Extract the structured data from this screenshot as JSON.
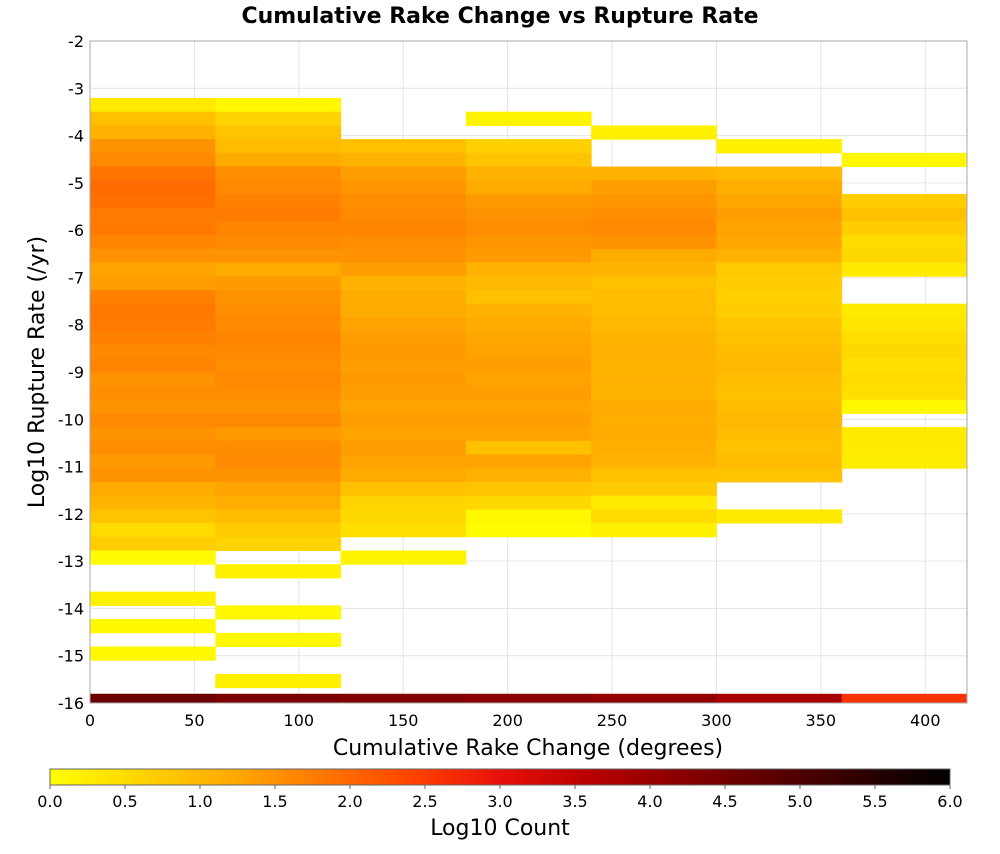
{
  "chart_data": {
    "type": "heatmap",
    "title": "Cumulative Rake Change vs Rupture Rate",
    "xlabel": "Cumulative Rake Change (degrees)",
    "ylabel": "Log10 Rupture Rate (/yr)",
    "xlim": [
      0,
      420
    ],
    "ylim": [
      -16,
      -2
    ],
    "grid": true,
    "x_ticks": [
      0,
      50,
      100,
      150,
      200,
      250,
      300,
      350,
      400
    ],
    "y_ticks": [
      -2,
      -3,
      -4,
      -5,
      -6,
      -7,
      -8,
      -9,
      -10,
      -11,
      -12,
      -13,
      -14,
      -15,
      -16
    ],
    "x_bin_edges": [
      0,
      60,
      120,
      180,
      240,
      300,
      360,
      420
    ],
    "y_bin_width": 0.29,
    "colorbar": {
      "label": "Log10 Count",
      "range": [
        0.0,
        6.0
      ],
      "ticks": [
        "0.0",
        "0.5",
        "1.0",
        "1.5",
        "2.0",
        "2.5",
        "3.0",
        "3.5",
        "4.0",
        "4.5",
        "5.0",
        "5.5",
        "6.0"
      ],
      "colors": [
        "#ffff00",
        "#ffd400",
        "#ffab00",
        "#ff7800",
        "#ff4400",
        "#e8100a",
        "#b80000",
        "#8a0000",
        "#5c0000",
        "#2e0000",
        "#000000"
      ]
    },
    "columns": [
      {
        "x_range": [
          0,
          60
        ],
        "cells": [
          {
            "y": -3.35,
            "v": 0.3
          },
          {
            "y": -3.64,
            "v": 0.9
          },
          {
            "y": -3.93,
            "v": 1.1
          },
          {
            "y": -4.22,
            "v": 1.5
          },
          {
            "y": -4.51,
            "v": 1.6
          },
          {
            "y": -4.8,
            "v": 1.85
          },
          {
            "y": -5.09,
            "v": 1.95
          },
          {
            "y": -5.38,
            "v": 1.9
          },
          {
            "y": -5.67,
            "v": 1.75
          },
          {
            "y": -5.96,
            "v": 1.8
          },
          {
            "y": -6.25,
            "v": 1.65
          },
          {
            "y": -6.54,
            "v": 1.5
          },
          {
            "y": -6.83,
            "v": 1.3
          },
          {
            "y": -7.12,
            "v": 1.35
          },
          {
            "y": -7.41,
            "v": 1.7
          },
          {
            "y": -7.7,
            "v": 1.8
          },
          {
            "y": -7.99,
            "v": 1.75
          },
          {
            "y": -8.28,
            "v": 1.7
          },
          {
            "y": -8.57,
            "v": 1.6
          },
          {
            "y": -8.86,
            "v": 1.65
          },
          {
            "y": -9.15,
            "v": 1.5
          },
          {
            "y": -9.44,
            "v": 1.55
          },
          {
            "y": -9.73,
            "v": 1.5
          },
          {
            "y": -10.02,
            "v": 1.6
          },
          {
            "y": -10.31,
            "v": 1.5
          },
          {
            "y": -10.6,
            "v": 1.55
          },
          {
            "y": -10.89,
            "v": 1.4
          },
          {
            "y": -11.18,
            "v": 1.5
          },
          {
            "y": -11.47,
            "v": 1.2
          },
          {
            "y": -11.76,
            "v": 1.05
          },
          {
            "y": -12.05,
            "v": 0.85
          },
          {
            "y": -12.34,
            "v": 0.5
          },
          {
            "y": -12.63,
            "v": 0.7
          },
          {
            "y": -12.92,
            "v": 0.05
          },
          {
            "y": -13.79,
            "v": 0.2
          },
          {
            "y": -14.37,
            "v": 0.1
          },
          {
            "y": -14.95,
            "v": 0.1
          },
          {
            "y": -15.95,
            "v": 4.6
          }
        ]
      },
      {
        "x_range": [
          60,
          120
        ],
        "cells": [
          {
            "y": -3.35,
            "v": 0.1
          },
          {
            "y": -3.64,
            "v": 0.6
          },
          {
            "y": -3.93,
            "v": 0.85
          },
          {
            "y": -4.22,
            "v": 0.95
          },
          {
            "y": -4.51,
            "v": 1.2
          },
          {
            "y": -4.8,
            "v": 1.55
          },
          {
            "y": -5.09,
            "v": 1.6
          },
          {
            "y": -5.38,
            "v": 1.7
          },
          {
            "y": -5.67,
            "v": 1.75
          },
          {
            "y": -5.96,
            "v": 1.65
          },
          {
            "y": -6.25,
            "v": 1.6
          },
          {
            "y": -6.54,
            "v": 1.5
          },
          {
            "y": -6.83,
            "v": 1.2
          },
          {
            "y": -7.12,
            "v": 1.4
          },
          {
            "y": -7.41,
            "v": 1.5
          },
          {
            "y": -7.7,
            "v": 1.55
          },
          {
            "y": -7.99,
            "v": 1.6
          },
          {
            "y": -8.28,
            "v": 1.65
          },
          {
            "y": -8.57,
            "v": 1.6
          },
          {
            "y": -8.86,
            "v": 1.55
          },
          {
            "y": -9.15,
            "v": 1.6
          },
          {
            "y": -9.44,
            "v": 1.55
          },
          {
            "y": -9.73,
            "v": 1.5
          },
          {
            "y": -10.02,
            "v": 1.6
          },
          {
            "y": -10.31,
            "v": 1.4
          },
          {
            "y": -10.6,
            "v": 1.55
          },
          {
            "y": -10.89,
            "v": 1.6
          },
          {
            "y": -11.18,
            "v": 1.5
          },
          {
            "y": -11.47,
            "v": 1.3
          },
          {
            "y": -11.76,
            "v": 1.15
          },
          {
            "y": -12.05,
            "v": 0.95
          },
          {
            "y": -12.34,
            "v": 0.75
          },
          {
            "y": -12.63,
            "v": 0.6
          },
          {
            "y": -13.21,
            "v": 0.2
          },
          {
            "y": -14.08,
            "v": 0.1
          },
          {
            "y": -14.66,
            "v": 0.1
          },
          {
            "y": -15.53,
            "v": 0.2
          },
          {
            "y": -15.95,
            "v": 4.4
          }
        ]
      },
      {
        "x_range": [
          120,
          180
        ],
        "cells": [
          {
            "y": -4.22,
            "v": 0.9
          },
          {
            "y": -4.51,
            "v": 1.1
          },
          {
            "y": -4.8,
            "v": 1.35
          },
          {
            "y": -5.09,
            "v": 1.45
          },
          {
            "y": -5.38,
            "v": 1.55
          },
          {
            "y": -5.67,
            "v": 1.6
          },
          {
            "y": -5.96,
            "v": 1.65
          },
          {
            "y": -6.25,
            "v": 1.55
          },
          {
            "y": -6.54,
            "v": 1.5
          },
          {
            "y": -6.83,
            "v": 1.35
          },
          {
            "y": -7.12,
            "v": 1.1
          },
          {
            "y": -7.41,
            "v": 1.2
          },
          {
            "y": -7.7,
            "v": 1.2
          },
          {
            "y": -7.99,
            "v": 1.3
          },
          {
            "y": -8.28,
            "v": 1.35
          },
          {
            "y": -8.57,
            "v": 1.4
          },
          {
            "y": -8.86,
            "v": 1.35
          },
          {
            "y": -9.15,
            "v": 1.4
          },
          {
            "y": -9.44,
            "v": 1.35
          },
          {
            "y": -9.73,
            "v": 1.3
          },
          {
            "y": -10.02,
            "v": 1.35
          },
          {
            "y": -10.31,
            "v": 1.3
          },
          {
            "y": -10.6,
            "v": 1.35
          },
          {
            "y": -10.89,
            "v": 1.3
          },
          {
            "y": -11.18,
            "v": 1.2
          },
          {
            "y": -11.47,
            "v": 0.9
          },
          {
            "y": -11.76,
            "v": 0.6
          },
          {
            "y": -12.05,
            "v": 0.55
          },
          {
            "y": -12.34,
            "v": 0.45
          },
          {
            "y": -12.92,
            "v": 0.15
          },
          {
            "y": -15.95,
            "v": 4.3
          }
        ]
      },
      {
        "x_range": [
          180,
          240
        ],
        "cells": [
          {
            "y": -3.64,
            "v": 0.15
          },
          {
            "y": -4.22,
            "v": 0.65
          },
          {
            "y": -4.51,
            "v": 0.85
          },
          {
            "y": -4.8,
            "v": 1.1
          },
          {
            "y": -5.09,
            "v": 1.2
          },
          {
            "y": -5.38,
            "v": 1.4
          },
          {
            "y": -5.67,
            "v": 1.5
          },
          {
            "y": -5.96,
            "v": 1.55
          },
          {
            "y": -6.25,
            "v": 1.45
          },
          {
            "y": -6.54,
            "v": 1.4
          },
          {
            "y": -6.83,
            "v": 1.1
          },
          {
            "y": -7.12,
            "v": 1.0
          },
          {
            "y": -7.41,
            "v": 0.9
          },
          {
            "y": -7.7,
            "v": 1.1
          },
          {
            "y": -7.99,
            "v": 1.2
          },
          {
            "y": -8.28,
            "v": 1.25
          },
          {
            "y": -8.57,
            "v": 1.3
          },
          {
            "y": -8.86,
            "v": 1.35
          },
          {
            "y": -9.15,
            "v": 1.3
          },
          {
            "y": -9.44,
            "v": 1.35
          },
          {
            "y": -9.73,
            "v": 1.3
          },
          {
            "y": -10.02,
            "v": 1.35
          },
          {
            "y": -10.31,
            "v": 1.3
          },
          {
            "y": -10.6,
            "v": 0.9
          },
          {
            "y": -10.89,
            "v": 1.3
          },
          {
            "y": -11.18,
            "v": 1.1
          },
          {
            "y": -11.47,
            "v": 0.8
          },
          {
            "y": -11.76,
            "v": 0.55
          },
          {
            "y": -12.05,
            "v": 0.1
          },
          {
            "y": -12.34,
            "v": 0.05
          },
          {
            "y": -15.95,
            "v": 4.2
          }
        ]
      },
      {
        "x_range": [
          240,
          300
        ],
        "cells": [
          {
            "y": -3.93,
            "v": 0.2
          },
          {
            "y": -4.8,
            "v": 1.1
          },
          {
            "y": -5.09,
            "v": 1.35
          },
          {
            "y": -5.38,
            "v": 1.45
          },
          {
            "y": -5.67,
            "v": 1.55
          },
          {
            "y": -5.96,
            "v": 1.6
          },
          {
            "y": -6.25,
            "v": 1.5
          },
          {
            "y": -6.54,
            "v": 1.2
          },
          {
            "y": -6.83,
            "v": 1.05
          },
          {
            "y": -7.12,
            "v": 0.9
          },
          {
            "y": -7.41,
            "v": 0.95
          },
          {
            "y": -7.7,
            "v": 0.95
          },
          {
            "y": -7.99,
            "v": 1.0
          },
          {
            "y": -8.28,
            "v": 1.05
          },
          {
            "y": -8.57,
            "v": 1.1
          },
          {
            "y": -8.86,
            "v": 1.05
          },
          {
            "y": -9.15,
            "v": 1.1
          },
          {
            "y": -9.44,
            "v": 1.05
          },
          {
            "y": -9.73,
            "v": 1.2
          },
          {
            "y": -10.02,
            "v": 1.15
          },
          {
            "y": -10.31,
            "v": 1.2
          },
          {
            "y": -10.6,
            "v": 1.15
          },
          {
            "y": -10.89,
            "v": 1.1
          },
          {
            "y": -11.18,
            "v": 0.9
          },
          {
            "y": -11.47,
            "v": 0.75
          },
          {
            "y": -11.76,
            "v": 0.3
          },
          {
            "y": -12.05,
            "v": 0.5
          },
          {
            "y": -12.34,
            "v": 0.2
          },
          {
            "y": -15.95,
            "v": 4.1
          }
        ]
      },
      {
        "x_range": [
          300,
          360
        ],
        "cells": [
          {
            "y": -4.22,
            "v": 0.2
          },
          {
            "y": -4.8,
            "v": 1.0
          },
          {
            "y": -5.09,
            "v": 1.15
          },
          {
            "y": -5.38,
            "v": 1.25
          },
          {
            "y": -5.67,
            "v": 1.35
          },
          {
            "y": -5.96,
            "v": 1.3
          },
          {
            "y": -6.25,
            "v": 1.25
          },
          {
            "y": -6.54,
            "v": 1.1
          },
          {
            "y": -6.83,
            "v": 0.75
          },
          {
            "y": -7.12,
            "v": 0.7
          },
          {
            "y": -7.41,
            "v": 0.65
          },
          {
            "y": -7.7,
            "v": 0.7
          },
          {
            "y": -7.99,
            "v": 0.8
          },
          {
            "y": -8.28,
            "v": 0.9
          },
          {
            "y": -8.57,
            "v": 0.95
          },
          {
            "y": -8.86,
            "v": 1.0
          },
          {
            "y": -9.15,
            "v": 0.95
          },
          {
            "y": -9.44,
            "v": 0.9
          },
          {
            "y": -9.73,
            "v": 0.95
          },
          {
            "y": -10.02,
            "v": 1.0
          },
          {
            "y": -10.31,
            "v": 0.95
          },
          {
            "y": -10.6,
            "v": 0.9
          },
          {
            "y": -10.89,
            "v": 0.95
          },
          {
            "y": -11.18,
            "v": 0.85
          },
          {
            "y": -12.05,
            "v": 0.3
          },
          {
            "y": -15.95,
            "v": 3.8
          }
        ]
      },
      {
        "x_range": [
          360,
          420
        ],
        "cells": [
          {
            "y": -4.51,
            "v": 0.1
          },
          {
            "y": -5.38,
            "v": 0.7
          },
          {
            "y": -5.67,
            "v": 0.9
          },
          {
            "y": -5.96,
            "v": 0.7
          },
          {
            "y": -6.25,
            "v": 0.5
          },
          {
            "y": -6.54,
            "v": 0.55
          },
          {
            "y": -6.83,
            "v": 0.3
          },
          {
            "y": -7.7,
            "v": 0.3
          },
          {
            "y": -7.99,
            "v": 0.35
          },
          {
            "y": -8.28,
            "v": 0.45
          },
          {
            "y": -8.57,
            "v": 0.55
          },
          {
            "y": -8.86,
            "v": 0.45
          },
          {
            "y": -9.15,
            "v": 0.5
          },
          {
            "y": -9.44,
            "v": 0.45
          },
          {
            "y": -9.73,
            "v": 0.1
          },
          {
            "y": -10.31,
            "v": 0.3
          },
          {
            "y": -10.6,
            "v": 0.3
          },
          {
            "y": -10.89,
            "v": 0.25
          },
          {
            "y": -15.95,
            "v": 2.6
          }
        ]
      }
    ]
  }
}
